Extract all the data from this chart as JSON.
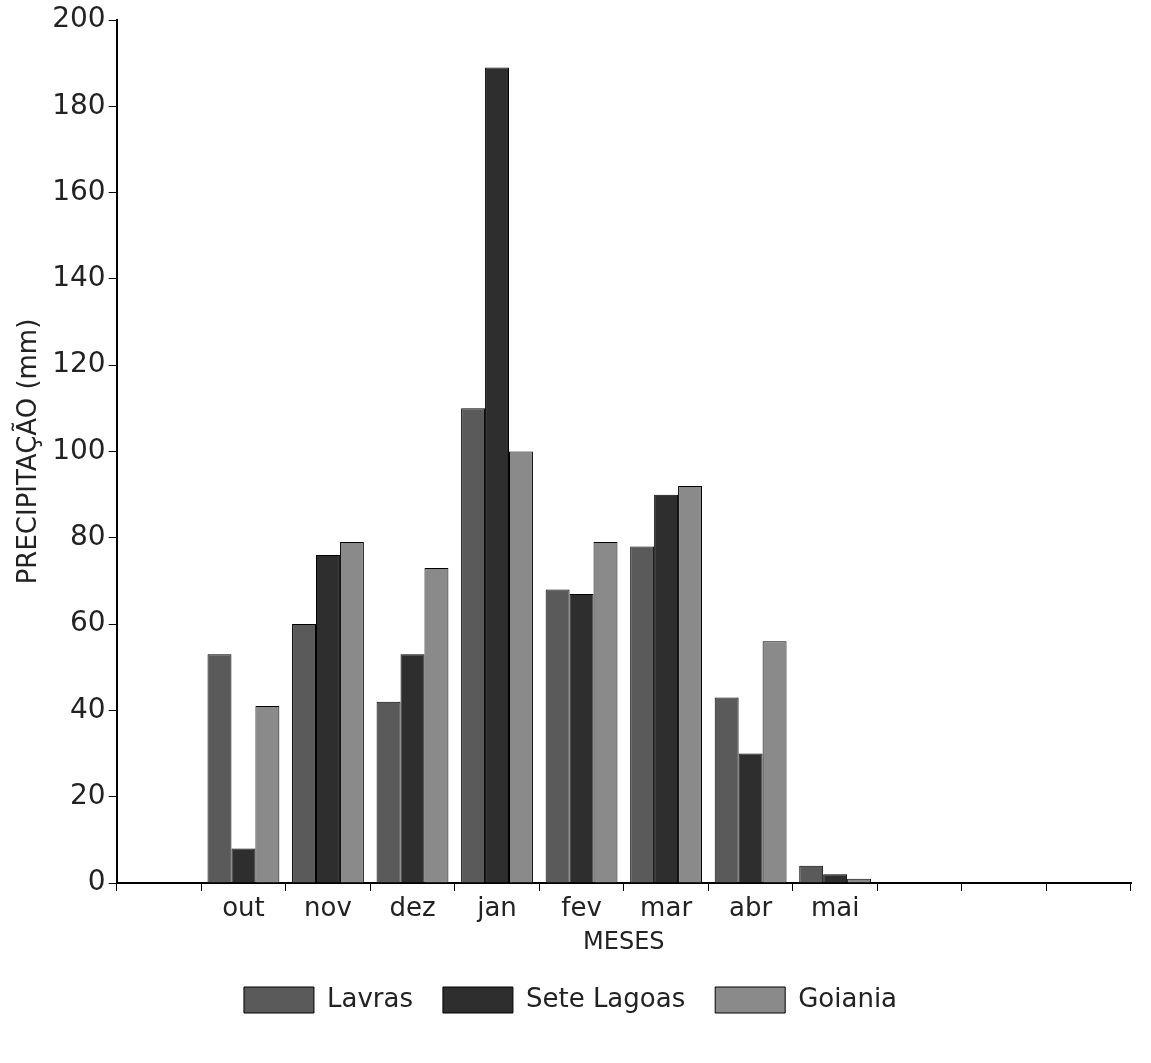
{
  "chart_data": {
    "type": "bar",
    "xlabel": "MESES",
    "ylabel": "PRECIPITAÇÃO (mm)",
    "categories": [
      null,
      "out",
      "nov",
      "dez",
      "jan",
      "fev",
      "mar",
      "abr",
      "mai",
      null,
      null,
      null
    ],
    "series": [
      {
        "name": "Lavras",
        "color": "#5a5a5a",
        "values": [
          null,
          53,
          60,
          42,
          110,
          68,
          78,
          43,
          4,
          null,
          null,
          null
        ]
      },
      {
        "name": "Sete Lagoas",
        "color": "#2e2e2e",
        "values": [
          null,
          8,
          76,
          53,
          189,
          67,
          90,
          30,
          2,
          null,
          null,
          null
        ]
      },
      {
        "name": "Goiania",
        "color": "#8a8a8a",
        "values": [
          null,
          41,
          79,
          73,
          100,
          79,
          92,
          56,
          1,
          null,
          null,
          null
        ]
      }
    ],
    "ylim": [
      0,
      200
    ],
    "yticks": [
      0,
      20,
      40,
      60,
      80,
      100,
      120,
      140,
      160,
      180,
      200
    ],
    "grid": false,
    "legend": "bottom"
  }
}
